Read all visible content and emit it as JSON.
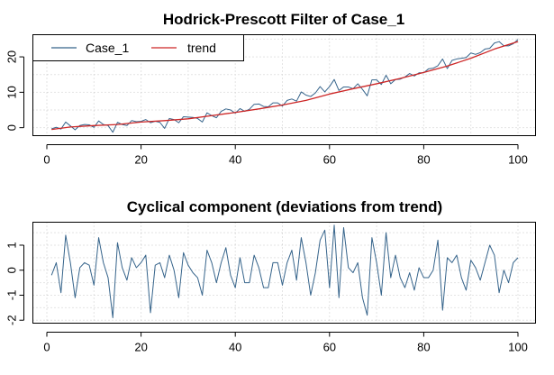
{
  "colors": {
    "series": "#36648b",
    "trend": "#cd2626"
  },
  "chart_data": [
    {
      "type": "line",
      "title": "Hodrick-Prescott Filter of Case_1",
      "xlim": [
        0,
        100
      ],
      "ylim": [
        -2,
        26
      ],
      "x_ticks": [
        0,
        20,
        40,
        60,
        80,
        100
      ],
      "y_ticks": [
        0,
        10,
        20
      ],
      "grid": true,
      "legend": {
        "position": "top-left",
        "entries": [
          "Case_1",
          "trend"
        ]
      },
      "series": [
        {
          "name": "Case_1",
          "color": "#36648b",
          "x": [
            1,
            2,
            3,
            4,
            5,
            6,
            7,
            8,
            9,
            10,
            11,
            12,
            13,
            14,
            15,
            16,
            17,
            18,
            19,
            20,
            21,
            22,
            23,
            24,
            25,
            26,
            27,
            28,
            29,
            30,
            31,
            32,
            33,
            34,
            35,
            36,
            37,
            38,
            39,
            40,
            41,
            42,
            43,
            44,
            45,
            46,
            47,
            48,
            49,
            50,
            51,
            52,
            53,
            54,
            55,
            56,
            57,
            58,
            59,
            60,
            61,
            62,
            63,
            64,
            65,
            66,
            67,
            68,
            69,
            70,
            71,
            72,
            73,
            74,
            75,
            76,
            77,
            78,
            79,
            80,
            81,
            82,
            83,
            84,
            85,
            86,
            87,
            88,
            89,
            90,
            91,
            92,
            93,
            94,
            95,
            96,
            97,
            98,
            99,
            100
          ],
          "values": [
            -0.3,
            0.1,
            -0.4,
            1.6,
            0.5,
            -0.6,
            0.6,
            0.9,
            0.8,
            0.1,
            1.9,
            0.9,
            0.6,
            -1.3,
            1.5,
            0.9,
            0.6,
            2.0,
            1.7,
            1.8,
            2.3,
            1.4,
            1.8,
            1.5,
            -0.2,
            2.6,
            2.3,
            1.4,
            3.1,
            3.0,
            2.9,
            2.6,
            1.6,
            4.2,
            3.4,
            2.8,
            4.6,
            5.3,
            5.0,
            4.1,
            5.4,
            4.6,
            5.2,
            6.6,
            6.7,
            6.0,
            5.9,
            7.0,
            7.0,
            6.1,
            7.7,
            8.1,
            7.5,
            10.1,
            9.2,
            8.8,
            9.8,
            11.6,
            10.1,
            11.6,
            13.6,
            10.5,
            11.5,
            11.5,
            11.0,
            12.4,
            10.8,
            9.0,
            13.5,
            13.5,
            12.2,
            14.8,
            12.4,
            13.6,
            13.7,
            14.3,
            15.3,
            14.6,
            15.5,
            15.5,
            16.6,
            16.8,
            17.5,
            19.4,
            16.7,
            19.0,
            19.4,
            19.6,
            19.8,
            21.1,
            20.7,
            21.2,
            22.2,
            22.4,
            23.9,
            24.3,
            23.1,
            23.1,
            23.7,
            24.9
          ]
        },
        {
          "name": "trend",
          "color": "#cd2626",
          "x": [
            1,
            5,
            10,
            15,
            20,
            25,
            30,
            35,
            40,
            45,
            50,
            55,
            60,
            65,
            70,
            75,
            80,
            85,
            90,
            95,
            100
          ],
          "values": [
            -0.5,
            0.2,
            0.6,
            0.9,
            1.6,
            2.0,
            2.5,
            3.4,
            4.3,
            5.3,
            6.4,
            7.7,
            9.5,
            11.0,
            12.4,
            13.9,
            15.6,
            17.4,
            19.6,
            22.2,
            24.3
          ]
        }
      ]
    },
    {
      "type": "line",
      "title": "Cyclical component (deviations from trend)",
      "xlim": [
        0,
        100
      ],
      "ylim": [
        -2.1,
        1.9
      ],
      "x_ticks": [
        0,
        20,
        40,
        60,
        80,
        100
      ],
      "y_ticks": [
        -2,
        -1,
        0,
        1
      ],
      "grid": true,
      "series": [
        {
          "color": "#36648b",
          "x": [
            1,
            2,
            3,
            4,
            5,
            6,
            7,
            8,
            9,
            10,
            11,
            12,
            13,
            14,
            15,
            16,
            17,
            18,
            19,
            20,
            21,
            22,
            23,
            24,
            25,
            26,
            27,
            28,
            29,
            30,
            31,
            32,
            33,
            34,
            35,
            36,
            37,
            38,
            39,
            40,
            41,
            42,
            43,
            44,
            45,
            46,
            47,
            48,
            49,
            50,
            51,
            52,
            53,
            54,
            55,
            56,
            57,
            58,
            59,
            60,
            61,
            62,
            63,
            64,
            65,
            66,
            67,
            68,
            69,
            70,
            71,
            72,
            73,
            74,
            75,
            76,
            77,
            78,
            79,
            80,
            81,
            82,
            83,
            84,
            85,
            86,
            87,
            88,
            89,
            90,
            91,
            92,
            93,
            94,
            95,
            96,
            97,
            98,
            99,
            100
          ],
          "values": [
            -0.2,
            0.3,
            -0.9,
            1.4,
            0.3,
            -1.1,
            0.1,
            0.3,
            0.2,
            -0.6,
            1.3,
            0.3,
            -0.3,
            -1.9,
            1.1,
            0.1,
            -0.4,
            0.5,
            0.1,
            0.3,
            0.6,
            -1.7,
            0.2,
            0.3,
            -0.3,
            0.6,
            0.0,
            -1.1,
            0.7,
            0.2,
            -0.1,
            -0.3,
            -1.0,
            0.8,
            0.3,
            -0.5,
            0.3,
            0.9,
            -0.2,
            -0.7,
            0.5,
            -0.5,
            -0.5,
            0.6,
            0.1,
            -0.7,
            -0.7,
            0.3,
            0.3,
            -0.6,
            0.3,
            0.8,
            -0.4,
            1.3,
            0.3,
            -1.0,
            -0.1,
            1.2,
            1.6,
            -0.7,
            1.8,
            -1.1,
            1.7,
            0.1,
            -0.1,
            0.3,
            -1.1,
            -1.8,
            1.3,
            0.3,
            -1.0,
            1.5,
            -0.3,
            0.6,
            -0.3,
            -0.7,
            -0.1,
            -0.8,
            0.1,
            -0.3,
            -0.3,
            0.0,
            1.2,
            -1.6,
            0.5,
            0.3,
            0.6,
            -0.3,
            -0.8,
            0.4,
            0.1,
            -0.4,
            0.3,
            1.0,
            0.6,
            -0.9,
            0.0,
            -0.5,
            0.3,
            0.5
          ]
        }
      ]
    }
  ]
}
